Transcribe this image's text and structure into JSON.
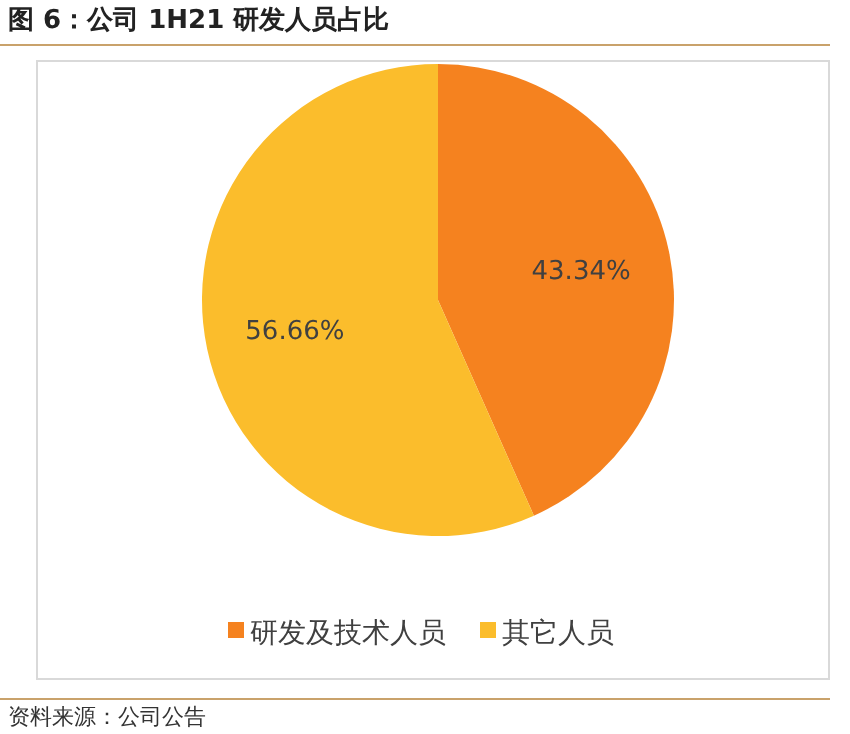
{
  "chart_data": {
    "type": "pie",
    "title": "图 6：公司 1H21 研发人员占比",
    "categories": [
      "研发及技术人员",
      "其它人员"
    ],
    "values": [
      43.34,
      56.66
    ],
    "colors": [
      "#f5821f",
      "#fbbd2c"
    ],
    "value_labels": [
      "43.34%",
      "56.66%"
    ],
    "legend": "bottom",
    "annotations": [
      "资料来源：公司公告"
    ]
  }
}
